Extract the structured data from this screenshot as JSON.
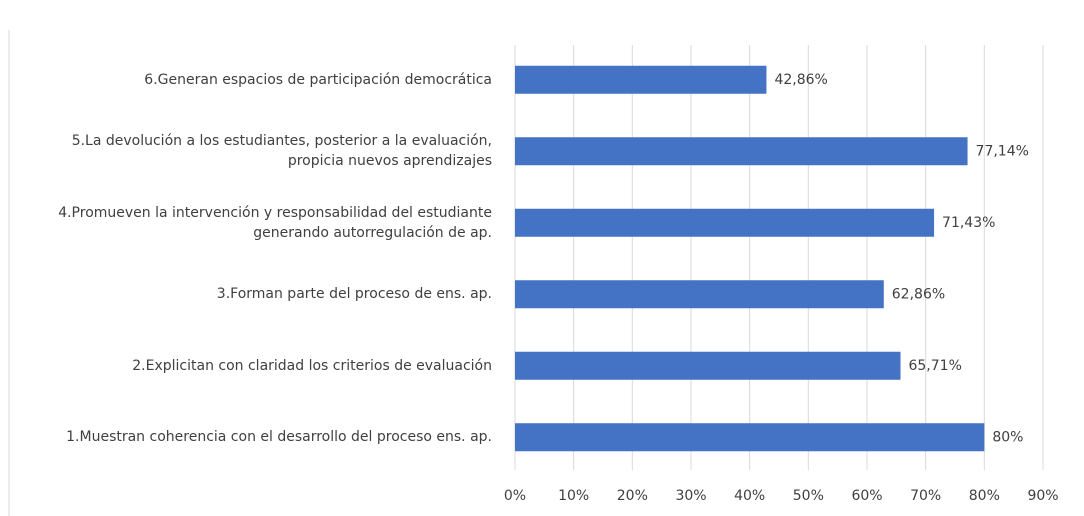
{
  "chart_data": {
    "type": "barh",
    "categories": [
      "6.Generan espacios de participación democrática",
      "5.La devolución a los estudiantes, posterior a la evaluación, propicia nuevos aprendizajes",
      "4.Promueven la intervención y responsabilidad del estudiante generando autorregulación de ap.",
      "3.Forman parte del proceso de ens. ap.",
      "2.Explicitan con claridad los criterios de evaluación",
      "1.Muestran coherencia con el desarrollo del proceso ens. ap."
    ],
    "values": [
      42.86,
      77.14,
      71.43,
      62.86,
      65.71,
      80
    ],
    "value_labels": [
      "42,86%",
      "77,14%",
      "71,43%",
      "62,86%",
      "65,71%",
      "80%"
    ],
    "color": "#4472c4",
    "xlim": [
      0,
      90
    ],
    "xticks": [
      {
        "value": 0,
        "label": "0%"
      },
      {
        "value": 10,
        "label": "10%"
      },
      {
        "value": 20,
        "label": "20%"
      },
      {
        "value": 30,
        "label": "30%"
      },
      {
        "value": 40,
        "label": "40%"
      },
      {
        "value": 50,
        "label": "50%"
      },
      {
        "value": 60,
        "label": "60%"
      },
      {
        "value": 70,
        "label": "70%"
      },
      {
        "value": 80,
        "label": "80%"
      },
      {
        "value": 90,
        "label": "90%"
      }
    ],
    "grid": true
  }
}
